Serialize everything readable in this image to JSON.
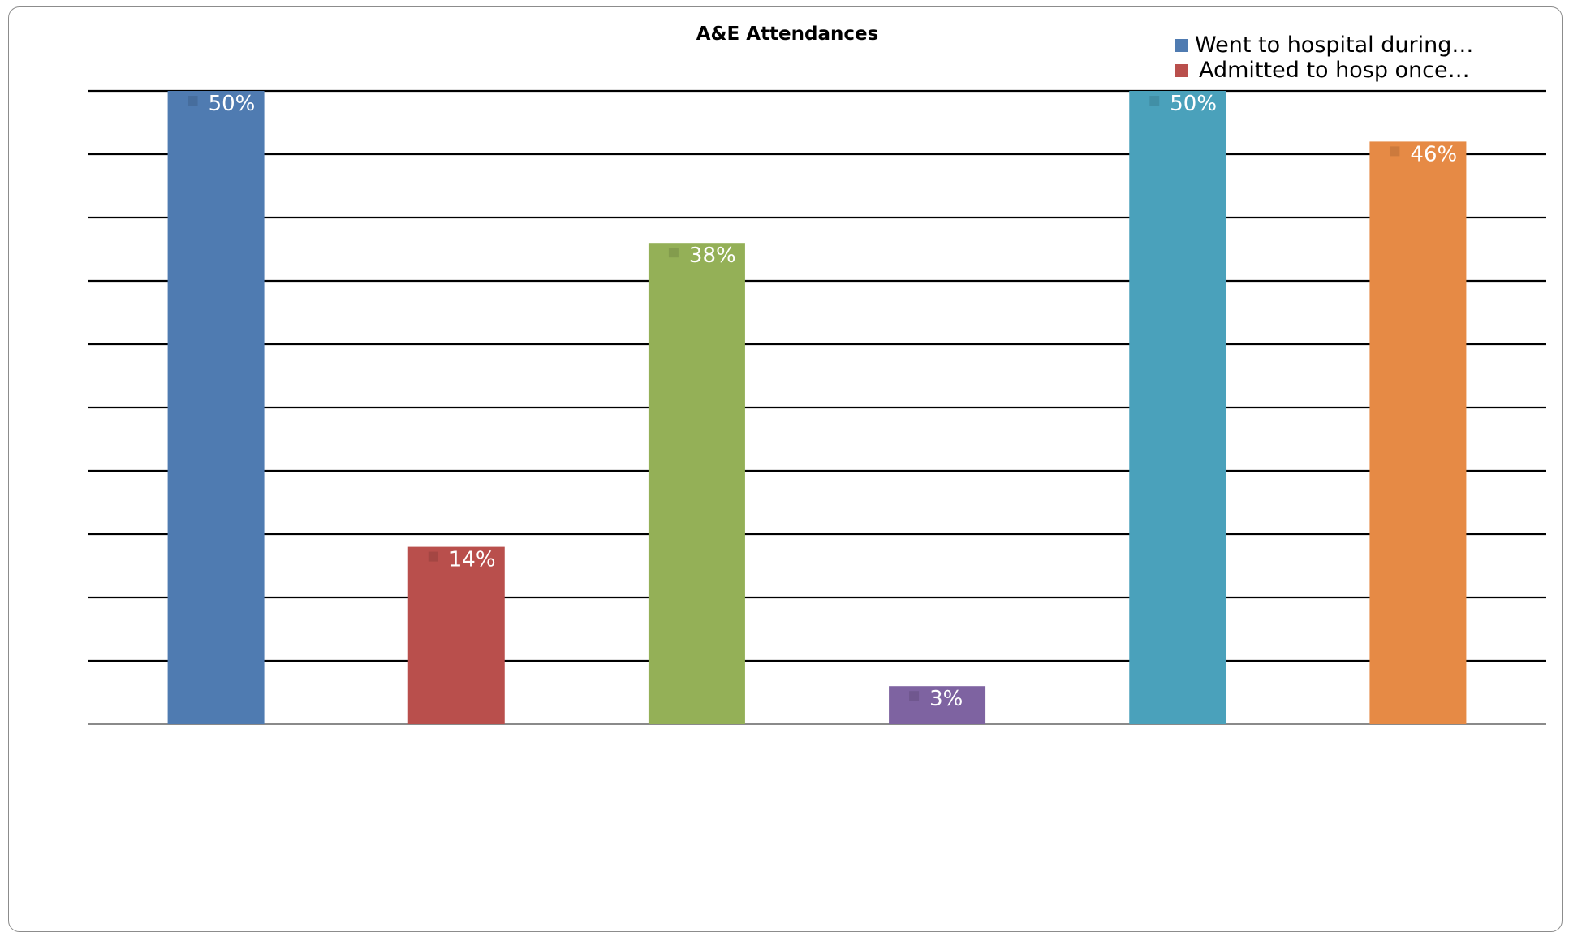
{
  "chart_data": {
    "type": "bar",
    "title": "A&E Attendances",
    "xlabel": "",
    "ylabel": "",
    "ylim": [
      0,
      50
    ],
    "grid": true,
    "legend_position": "top-right",
    "series": [
      {
        "name": "Went to hospital during…",
        "value": 50,
        "label": "50%",
        "color": "#4F7BB1"
      },
      {
        "name": "Admitted to hosp once…",
        "value": 14,
        "label": "14%",
        "color": "#B94F4C"
      },
      {
        "name": "",
        "value": 38,
        "label": "38%",
        "color": "#94B057"
      },
      {
        "name": "",
        "value": 3,
        "label": "3%",
        "color": "#7E63A1"
      },
      {
        "name": "",
        "value": 50,
        "label": "50%",
        "color": "#4AA1BB"
      },
      {
        "name": "",
        "value": 46,
        "label": "46%",
        "color": "#E68A45"
      }
    ]
  }
}
